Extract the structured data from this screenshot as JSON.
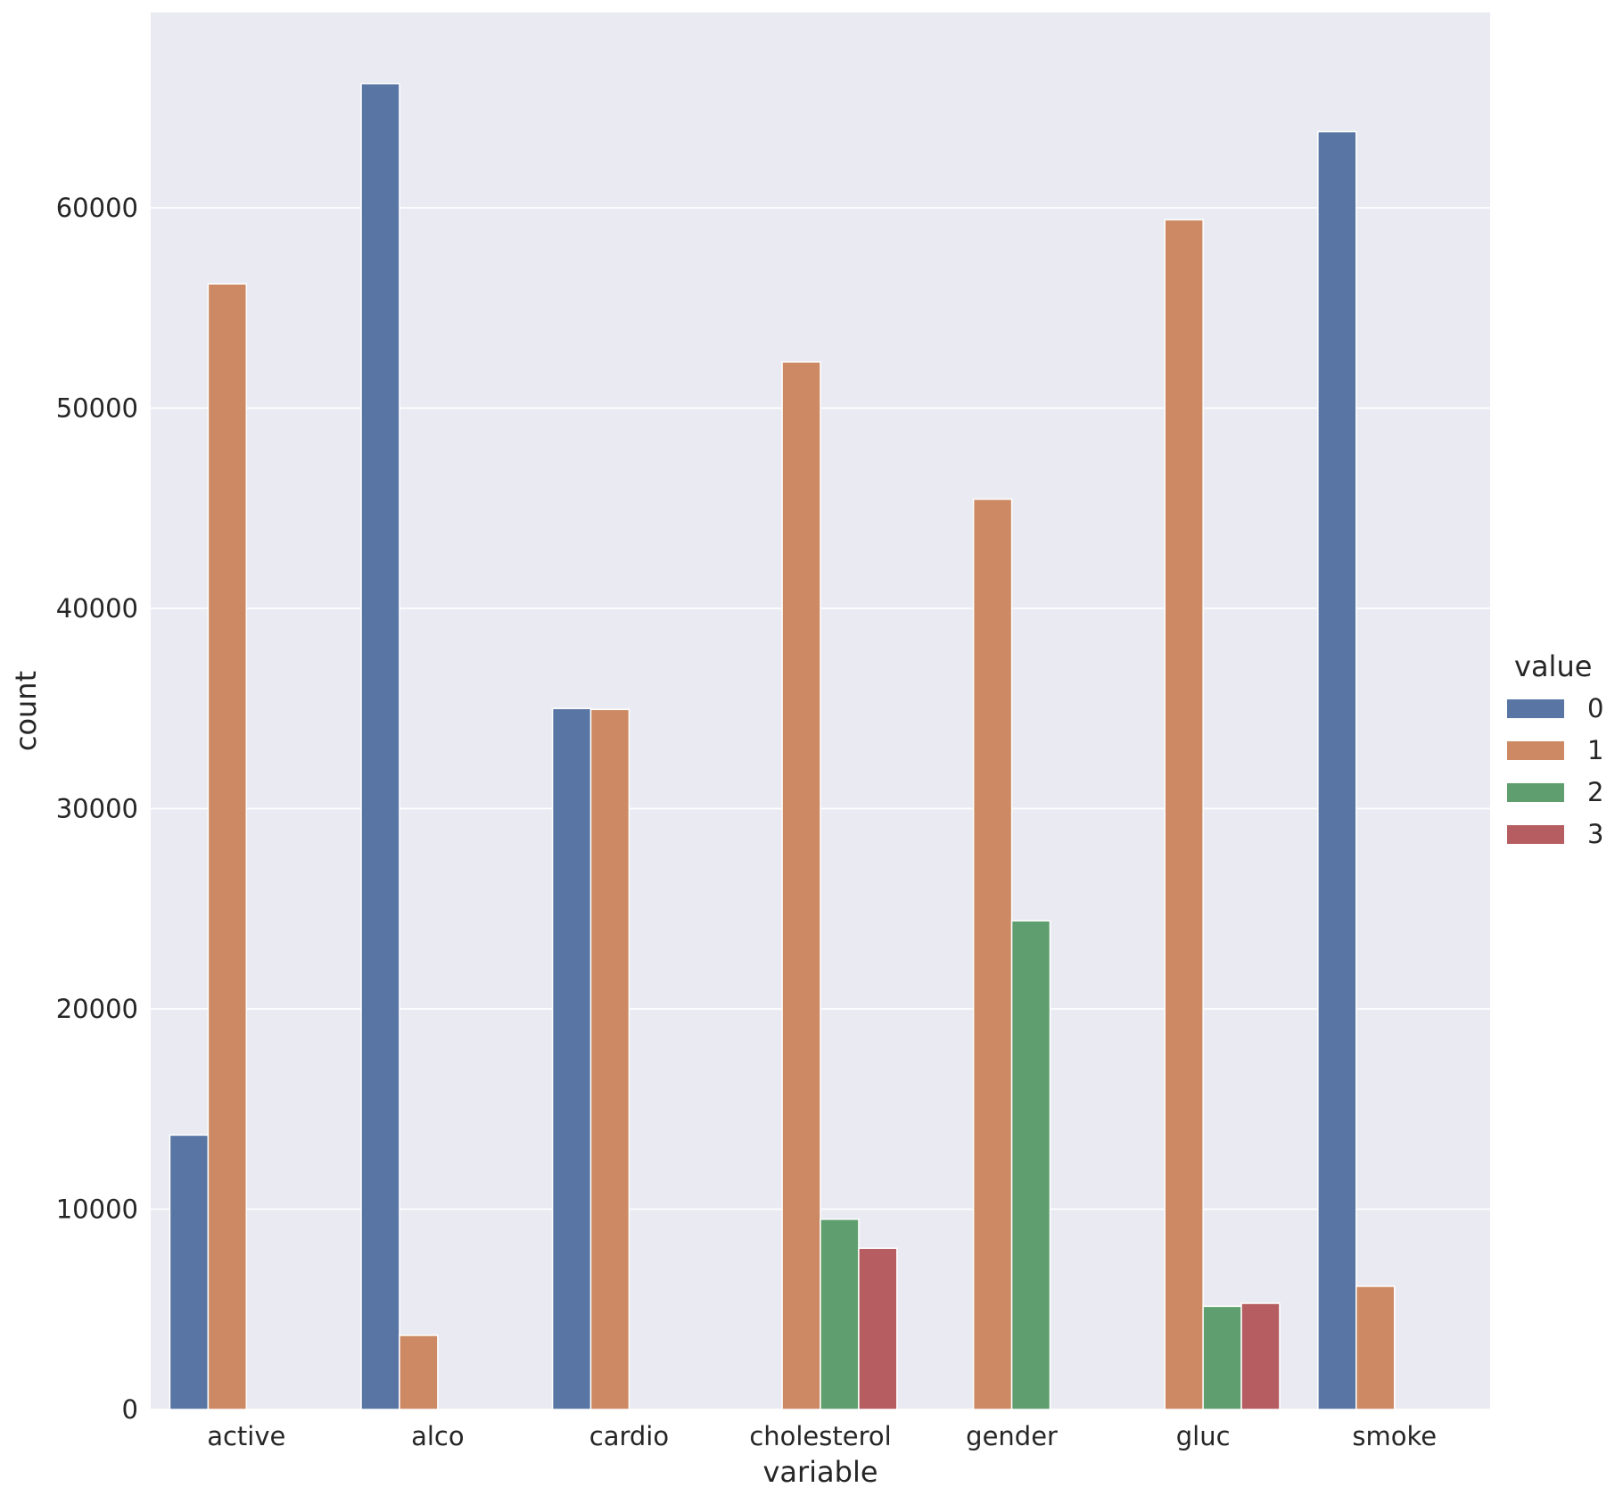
{
  "chart_data": {
    "type": "bar",
    "title": "",
    "xlabel": "variable",
    "ylabel": "count",
    "ylim": [
      0,
      69750
    ],
    "yticks": [
      0,
      10000,
      20000,
      30000,
      40000,
      50000,
      60000
    ],
    "grid": true,
    "legend": {
      "title": "value",
      "placement": "right"
    },
    "categories": [
      "active",
      "alco",
      "cardio",
      "cholesterol",
      "gender",
      "gluc",
      "smoke"
    ],
    "series": [
      {
        "name": "0",
        "color": "#5875a4",
        "values": [
          13700,
          66200,
          35000,
          null,
          null,
          null,
          63800
        ]
      },
      {
        "name": "1",
        "color": "#cc8963",
        "values": [
          56200,
          3700,
          34950,
          52300,
          45450,
          59400,
          6150
        ]
      },
      {
        "name": "2",
        "color": "#5f9e6e",
        "values": [
          null,
          null,
          null,
          9500,
          24400,
          5150,
          null
        ]
      },
      {
        "name": "3",
        "color": "#b55d60",
        "values": [
          null,
          null,
          null,
          8050,
          null,
          5300,
          null
        ]
      }
    ],
    "colors": {
      "plot_background": "#eaeaf2",
      "grid": "#ffffff"
    }
  }
}
